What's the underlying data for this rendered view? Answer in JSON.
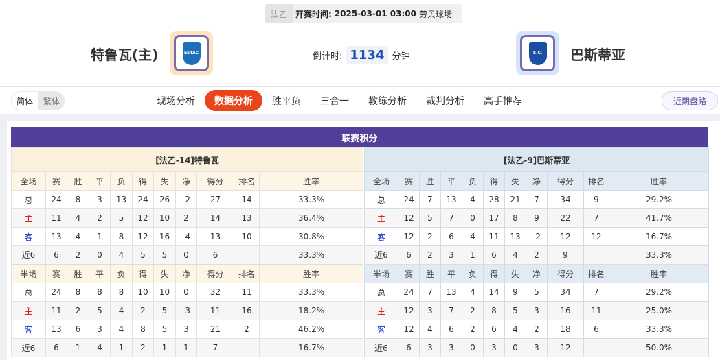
{
  "info": {
    "league": "法乙",
    "time_label": "开赛时间:",
    "time": "2025-03-01 03:00",
    "venue": "劳贝球场"
  },
  "home": {
    "name": "特鲁瓦(主)",
    "logo_text": "ESTAC",
    "logo_color": "#1d6fb8"
  },
  "away": {
    "name": "巴斯蒂亚",
    "logo_text": "S.C. BASTIA",
    "logo_color": "#1c4fa3"
  },
  "countdown": {
    "label": "倒计时:",
    "value": "1134",
    "unit": "分钟"
  },
  "lang": {
    "simplified": "简体",
    "traditional": "繁体"
  },
  "nav": [
    "现场分析",
    "数据分析",
    "胜平负",
    "三合一",
    "教练分析",
    "裁判分析",
    "高手推荐"
  ],
  "nav_active": 1,
  "recent_button": "近期盘路",
  "standings": {
    "title": "联赛积分",
    "columns": [
      "赛",
      "胜",
      "平",
      "负",
      "得",
      "失",
      "净",
      "得分",
      "排名",
      "胜率"
    ],
    "full_label": "全场",
    "half_label": "半场",
    "tables": [
      {
        "team": "[法乙-14]特鲁瓦",
        "full": [
          [
            "总",
            "24",
            "8",
            "3",
            "13",
            "24",
            "26",
            "-2",
            "27",
            "14",
            "33.3%"
          ],
          [
            "主",
            "11",
            "4",
            "2",
            "5",
            "12",
            "10",
            "2",
            "14",
            "13",
            "36.4%"
          ],
          [
            "客",
            "13",
            "4",
            "1",
            "8",
            "12",
            "16",
            "-4",
            "13",
            "10",
            "30.8%"
          ],
          [
            "近6",
            "6",
            "2",
            "0",
            "4",
            "5",
            "5",
            "0",
            "6",
            "",
            "33.3%"
          ]
        ],
        "half": [
          [
            "总",
            "24",
            "8",
            "8",
            "8",
            "10",
            "10",
            "0",
            "32",
            "11",
            "33.3%"
          ],
          [
            "主",
            "11",
            "2",
            "5",
            "4",
            "2",
            "5",
            "-3",
            "11",
            "16",
            "18.2%"
          ],
          [
            "客",
            "13",
            "6",
            "3",
            "4",
            "8",
            "5",
            "3",
            "21",
            "2",
            "46.2%"
          ],
          [
            "近6",
            "6",
            "1",
            "4",
            "1",
            "2",
            "1",
            "1",
            "7",
            "",
            "16.7%"
          ]
        ]
      },
      {
        "team": "[法乙-9]巴斯蒂亚",
        "full": [
          [
            "总",
            "24",
            "7",
            "13",
            "4",
            "28",
            "21",
            "7",
            "34",
            "9",
            "29.2%"
          ],
          [
            "主",
            "12",
            "5",
            "7",
            "0",
            "17",
            "8",
            "9",
            "22",
            "7",
            "41.7%"
          ],
          [
            "客",
            "12",
            "2",
            "6",
            "4",
            "11",
            "13",
            "-2",
            "12",
            "12",
            "16.7%"
          ],
          [
            "近6",
            "6",
            "2",
            "3",
            "1",
            "6",
            "4",
            "2",
            "9",
            "",
            "33.3%"
          ]
        ],
        "half": [
          [
            "总",
            "24",
            "7",
            "13",
            "4",
            "14",
            "9",
            "5",
            "34",
            "7",
            "29.2%"
          ],
          [
            "主",
            "12",
            "3",
            "7",
            "2",
            "8",
            "5",
            "3",
            "16",
            "11",
            "25.0%"
          ],
          [
            "客",
            "12",
            "4",
            "6",
            "2",
            "6",
            "4",
            "2",
            "18",
            "6",
            "33.3%"
          ],
          [
            "近6",
            "6",
            "3",
            "3",
            "0",
            "3",
            "0",
            "3",
            "12",
            "",
            "50.0%"
          ]
        ]
      }
    ]
  }
}
